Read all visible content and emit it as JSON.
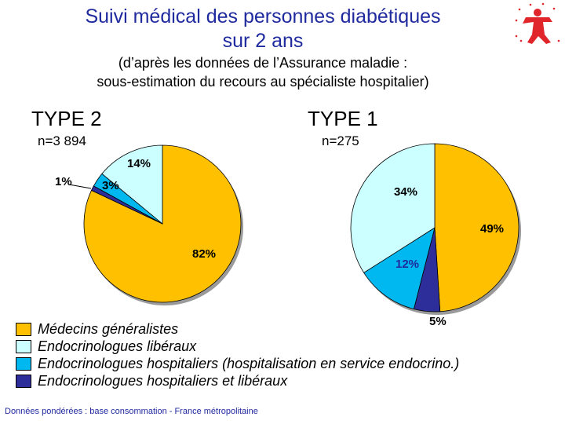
{
  "header": {
    "title_line1": "Suivi médical des personnes diabétiques",
    "title_line2": "sur 2 ans",
    "subtitle_line1": "(d’après les données de l’Assurance maladie :",
    "subtitle_line2": "sous-estimation du recours au spécialiste hospitalier)"
  },
  "colors": {
    "generalistes": "#FFC000",
    "endo_liberaux": "#CCFFFF",
    "endo_hospitaliers": "#00B8F0",
    "endo_hosp_liberaux": "#2E2E9A",
    "title": "#1F2A9E",
    "logo": "#E0262B"
  },
  "chart_data": [
    {
      "type": "pie",
      "title": "TYPE 2",
      "n_label": "n=3 894",
      "slices": [
        {
          "category": "Médecins généralistes",
          "value": 82,
          "label": "82%"
        },
        {
          "category": "Endocrinologues hospitaliers et libéraux",
          "value": 1,
          "label": "1%"
        },
        {
          "category": "Endocrinologues hospitaliers (hospitalisation en service endocrino.)",
          "value": 3,
          "label": "3%"
        },
        {
          "category": "Endocrinologues libéraux",
          "value": 14,
          "label": "14%"
        }
      ]
    },
    {
      "type": "pie",
      "title": "TYPE 1",
      "n_label": "n=275",
      "slices": [
        {
          "category": "Médecins généralistes",
          "value": 49,
          "label": "49%"
        },
        {
          "category": "Endocrinologues hospitaliers et libéraux",
          "value": 5,
          "label": "5%"
        },
        {
          "category": "Endocrinologues hospitaliers (hospitalisation en service endocrino.)",
          "value": 12,
          "label": "12%"
        },
        {
          "category": "Endocrinologues libéraux",
          "value": 34,
          "label": "34%"
        }
      ]
    }
  ],
  "legend": [
    {
      "label": "Médecins généralistes",
      "color": "#FFC000"
    },
    {
      "label": "Endocrinologues libéraux",
      "color": "#CCFFFF"
    },
    {
      "label": "Endocrinologues hospitaliers (hospitalisation en service endocrino.)",
      "color": "#00B8F0"
    },
    {
      "label": "Endocrinologues hospitaliers et libéraux",
      "color": "#2E2E9A"
    }
  ],
  "footnote": "Données pondérées : base consommation - France métropolitaine",
  "logo_icon": "person-figure-logo-icon"
}
